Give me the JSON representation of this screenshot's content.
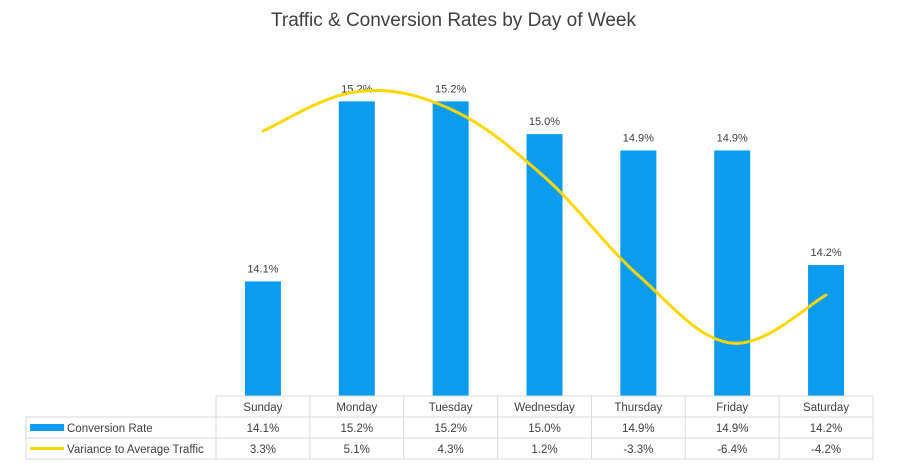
{
  "chart_data": {
    "type": "bar",
    "title": "Traffic & Conversion Rates by Day of Week",
    "categories": [
      "Sunday",
      "Monday",
      "Tuesday",
      "Wednesday",
      "Thursday",
      "Friday",
      "Saturday"
    ],
    "series": [
      {
        "name": "Conversion Rate",
        "type": "bar",
        "color": "#0b9bef",
        "values": [
          14.1,
          15.2,
          15.2,
          15.0,
          14.9,
          14.9,
          14.2
        ],
        "labels": [
          "14.1%",
          "15.2%",
          "15.2%",
          "15.0%",
          "14.9%",
          "14.9%",
          "14.2%"
        ]
      },
      {
        "name": "Variance to Average Traffic",
        "type": "line",
        "color": "#ffd700",
        "values": [
          3.3,
          5.1,
          4.3,
          1.2,
          -3.3,
          -6.4,
          -4.2
        ],
        "labels": [
          "3.3%",
          "5.1%",
          "4.3%",
          "1.2%",
          "-3.3%",
          "-6.4%",
          "-4.2%"
        ]
      }
    ],
    "bar_axis_range": [
      13.4,
      15.3
    ],
    "line_axis_range": [
      -9.0,
      6.0
    ],
    "legend": "data table",
    "grid": false
  }
}
